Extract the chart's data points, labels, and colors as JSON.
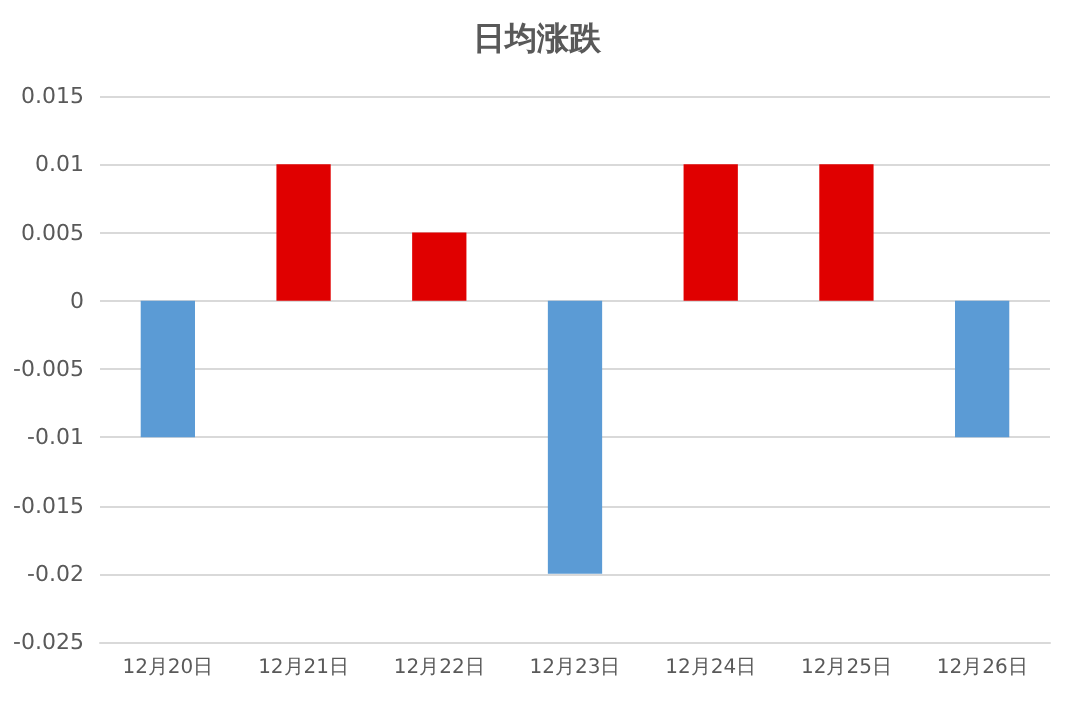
{
  "chart_data": {
    "type": "bar",
    "title": "日均涨跌",
    "categories": [
      "12月20日",
      "12月21日",
      "12月22日",
      "12月23日",
      "12月24日",
      "12月25日",
      "12月26日"
    ],
    "values": [
      -0.01,
      0.01,
      0.005,
      -0.02,
      0.01,
      0.01,
      -0.01
    ],
    "colors": [
      "#5b9bd5",
      "#e00000",
      "#e00000",
      "#5b9bd5",
      "#e00000",
      "#e00000",
      "#5b9bd5"
    ],
    "ylim": [
      -0.025,
      0.015
    ],
    "yticks": [
      -0.025,
      -0.02,
      -0.015,
      -0.01,
      -0.005,
      0,
      0.005,
      0.01,
      0.015
    ],
    "grid": "y"
  }
}
